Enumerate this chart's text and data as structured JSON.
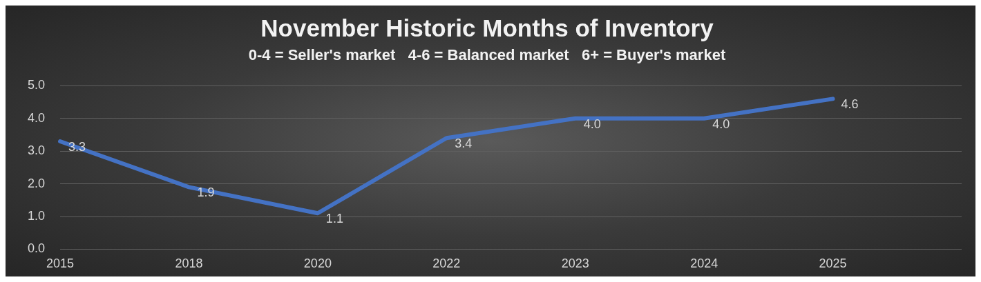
{
  "chart_data": {
    "type": "line",
    "title": "November Historic Months of Inventory",
    "subtitle": "0-4 = Seller's market   4-6 = Balanced market   6+ = Buyer's market",
    "categories": [
      "2015",
      "2018",
      "2020",
      "2022",
      "2023",
      "2024",
      "2025",
      null
    ],
    "series": [
      {
        "color": "#4472c4",
        "values": [
          3.3,
          1.9,
          1.1,
          3.4,
          4.0,
          4.0,
          4.6,
          null
        ],
        "value_labels": [
          "3.3",
          "1.9",
          "1.1",
          "3.4",
          "4.0",
          "4.0",
          "4.6",
          null
        ]
      }
    ],
    "ylim": [
      0,
      5
    ],
    "yticks": [
      {
        "value": 0,
        "label": "0.0"
      },
      {
        "value": 1,
        "label": "1.0"
      },
      {
        "value": 2,
        "label": "2.0"
      },
      {
        "value": 3,
        "label": "3.0"
      },
      {
        "value": 4,
        "label": "4.0"
      },
      {
        "value": 5,
        "label": "5.0"
      }
    ],
    "grid": "y",
    "legend": false,
    "marker": "none",
    "line_style": "solid"
  }
}
